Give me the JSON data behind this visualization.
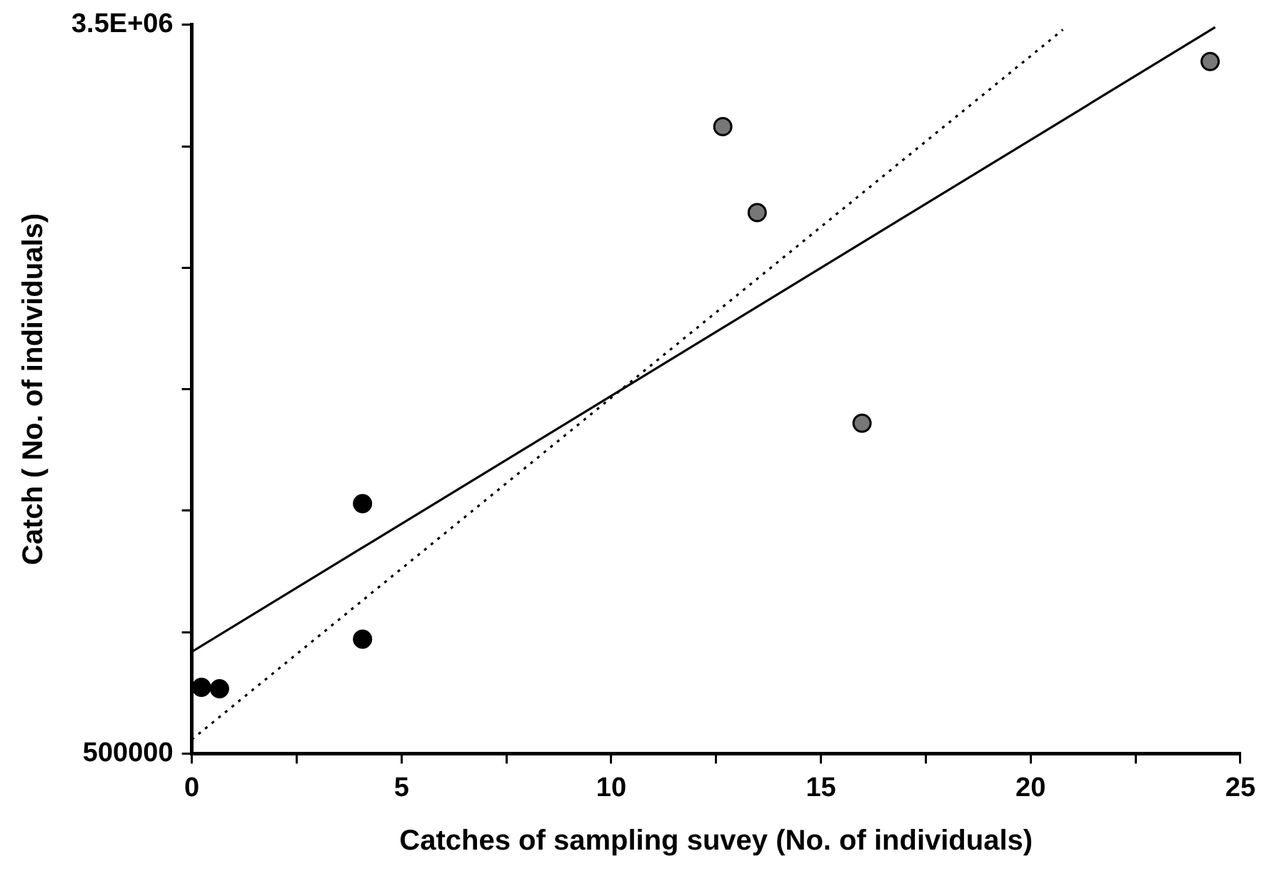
{
  "chart_data": {
    "type": "scatter",
    "xlabel": "Catches of sampling suvey (No. of individuals)",
    "ylabel": "Catch ( No. of individuals)",
    "xlim": [
      0,
      25
    ],
    "ylim": [
      500000,
      3500000
    ],
    "xticks": [
      0,
      {
        "value": 2.5,
        "label": null
      },
      5,
      {
        "value": 7.5,
        "label": null
      },
      10,
      {
        "value": 12.5,
        "label": null
      },
      15,
      {
        "value": 17.5,
        "label": null
      },
      20,
      {
        "value": 22.5,
        "label": null
      },
      25
    ],
    "yticks": [
      500000,
      {
        "value": 1000000,
        "label": null
      },
      {
        "value": 1500000,
        "label": null
      },
      {
        "value": 2000000,
        "label": null
      },
      {
        "value": 2500000,
        "label": null
      },
      {
        "value": 3000000,
        "label": null
      },
      {
        "value": 3500000,
        "label": "3.5E+06"
      }
    ],
    "grid": false,
    "legend": false,
    "marker": "circle",
    "series": [
      {
        "color": "#000000",
        "x": [
          0.23,
          0.66,
          4.07,
          4.07
        ],
        "values": [
          773000,
          767000,
          971000,
          1529000
        ]
      },
      {
        "color": "#777777",
        "x": [
          12.66,
          13.48,
          15.98,
          24.28
        ],
        "values": [
          3081000,
          2727000,
          1860000,
          3349000
        ]
      },
      {
        "type": "line",
        "color": "#000000",
        "line_style": "solid",
        "marker": "none",
        "x": [
          0,
          24.4
        ],
        "values": [
          919000,
          3490000
        ]
      },
      {
        "type": "line",
        "color": "#000000",
        "line_style": "dotted",
        "marker": "none",
        "x": [
          0,
          20.77
        ],
        "values": [
          558000,
          3480000
        ]
      }
    ]
  }
}
